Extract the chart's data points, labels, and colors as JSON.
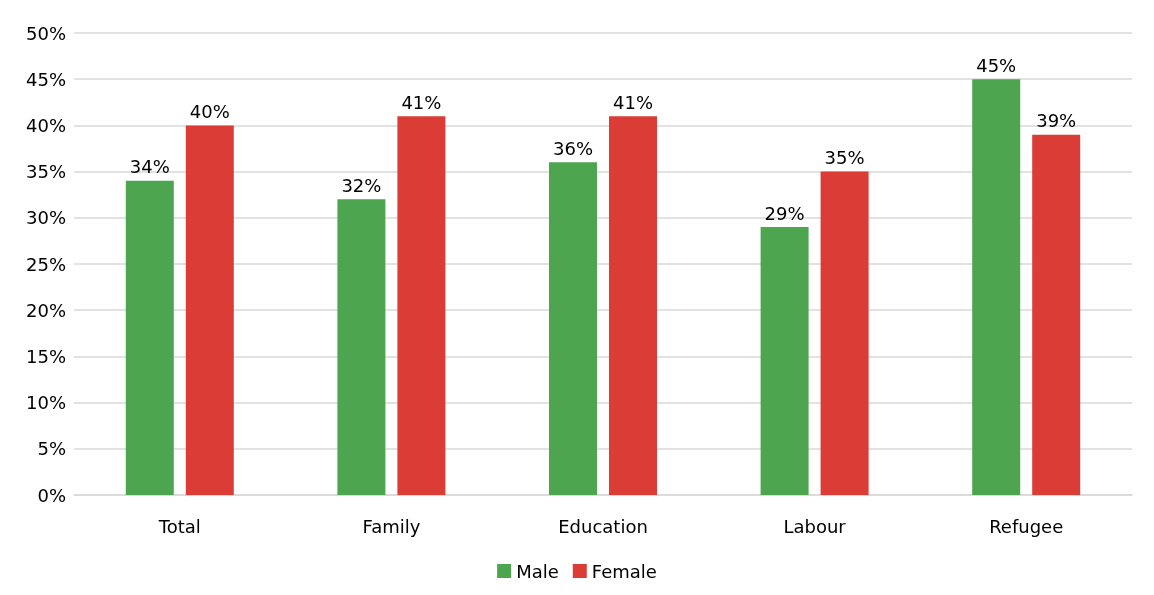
{
  "chart_data": {
    "type": "bar",
    "categories": [
      "Total",
      "Family",
      "Education",
      "Labour",
      "Refugee"
    ],
    "series": [
      {
        "name": "Male",
        "color": "#4ea54f",
        "values": [
          34,
          32,
          36,
          29,
          45
        ],
        "value_labels": [
          "34%",
          "32%",
          "36%",
          "29%",
          "45%"
        ]
      },
      {
        "name": "Female",
        "color": "#db3c36",
        "values": [
          40,
          41,
          41,
          35,
          39
        ],
        "value_labels": [
          "40%",
          "41%",
          "41%",
          "35%",
          "39%"
        ]
      }
    ],
    "ylim": [
      0,
      50
    ],
    "yticks": [
      {
        "value": 0,
        "label": "0%"
      },
      {
        "value": 5,
        "label": "5%"
      },
      {
        "value": 10,
        "label": "10%"
      },
      {
        "value": 15,
        "label": "15%"
      },
      {
        "value": 20,
        "label": "20%"
      },
      {
        "value": 25,
        "label": "25%"
      },
      {
        "value": 30,
        "label": "30%"
      },
      {
        "value": 35,
        "label": "35%"
      },
      {
        "value": 40,
        "label": "40%"
      },
      {
        "value": 45,
        "label": "45%"
      },
      {
        "value": 50,
        "label": "50%"
      }
    ],
    "grid": "y",
    "legend": "bottom"
  }
}
